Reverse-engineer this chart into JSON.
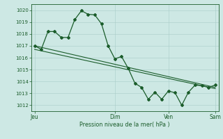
{
  "background_color": "#cde8e4",
  "grid_color": "#a8cdc8",
  "line_color": "#1a5c2a",
  "text_color": "#1a5c2a",
  "xlabel": "Pression niveau de la mer( hPa )",
  "ylim": [
    1011.5,
    1020.5
  ],
  "yticks": [
    1012,
    1013,
    1014,
    1015,
    1016,
    1017,
    1018,
    1019,
    1020
  ],
  "xtick_labels": [
    "Jeu",
    "Dim",
    "Ven",
    "Sam"
  ],
  "xtick_positions": [
    0,
    12,
    20,
    27
  ],
  "line1_x": [
    0,
    1,
    2,
    3,
    4,
    5,
    6,
    7,
    8,
    9,
    10,
    11,
    12,
    13,
    14,
    15,
    16,
    17,
    18,
    19,
    20,
    21,
    22,
    23,
    24,
    25,
    26,
    27
  ],
  "line1_y": [
    1017.0,
    1016.7,
    1018.2,
    1018.2,
    1017.7,
    1017.7,
    1019.2,
    1019.95,
    1019.65,
    1019.6,
    1018.85,
    1017.0,
    1015.9,
    1016.1,
    1015.1,
    1013.85,
    1013.5,
    1012.5,
    1013.1,
    1012.5,
    1013.2,
    1013.05,
    1012.0,
    1013.1,
    1013.7,
    1013.65,
    1013.5,
    1013.7
  ],
  "line2_x": [
    0,
    27
  ],
  "line2_y": [
    1017.0,
    1013.5
  ],
  "line3_x": [
    0,
    27
  ],
  "line3_y": [
    1016.7,
    1013.4
  ]
}
